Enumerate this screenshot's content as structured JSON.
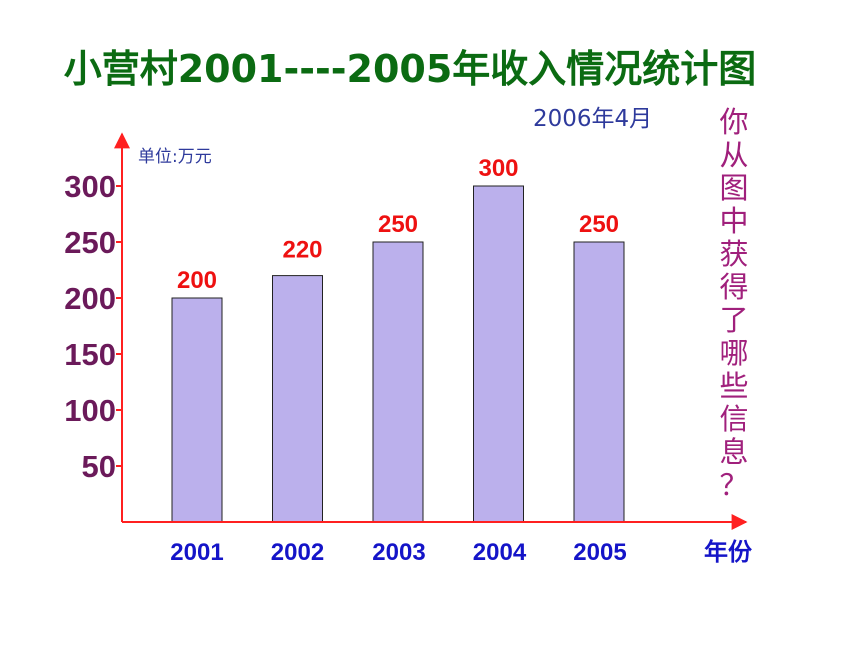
{
  "title": "小营村2001----2005年收入情况统计图",
  "date_label": "2006年4月",
  "side_question": "你从图中获得了哪些信息？",
  "chart_data": {
    "type": "bar",
    "title": "小营村2001----2005年收入情况统计图",
    "categories": [
      "2001",
      "2002",
      "2003",
      "2004",
      "2005"
    ],
    "values": [
      200,
      220,
      250,
      300,
      250
    ],
    "ylabel": "单位:万元",
    "xlabel": "年份",
    "yticks": [
      50,
      100,
      150,
      200,
      250,
      300
    ],
    "ylim": [
      0,
      300
    ],
    "grid": false,
    "legend": "none"
  },
  "colors": {
    "title": "#0b6b12",
    "bar_fill": "#bbb0ec",
    "bar_stroke": "#222222",
    "axis": "#ff2020",
    "ytick_label": "#6b1a5a",
    "xtick_label": "#1414c8",
    "data_label": "#ee1111",
    "date_label": "#2e3a9c",
    "question": "#a0207c"
  }
}
